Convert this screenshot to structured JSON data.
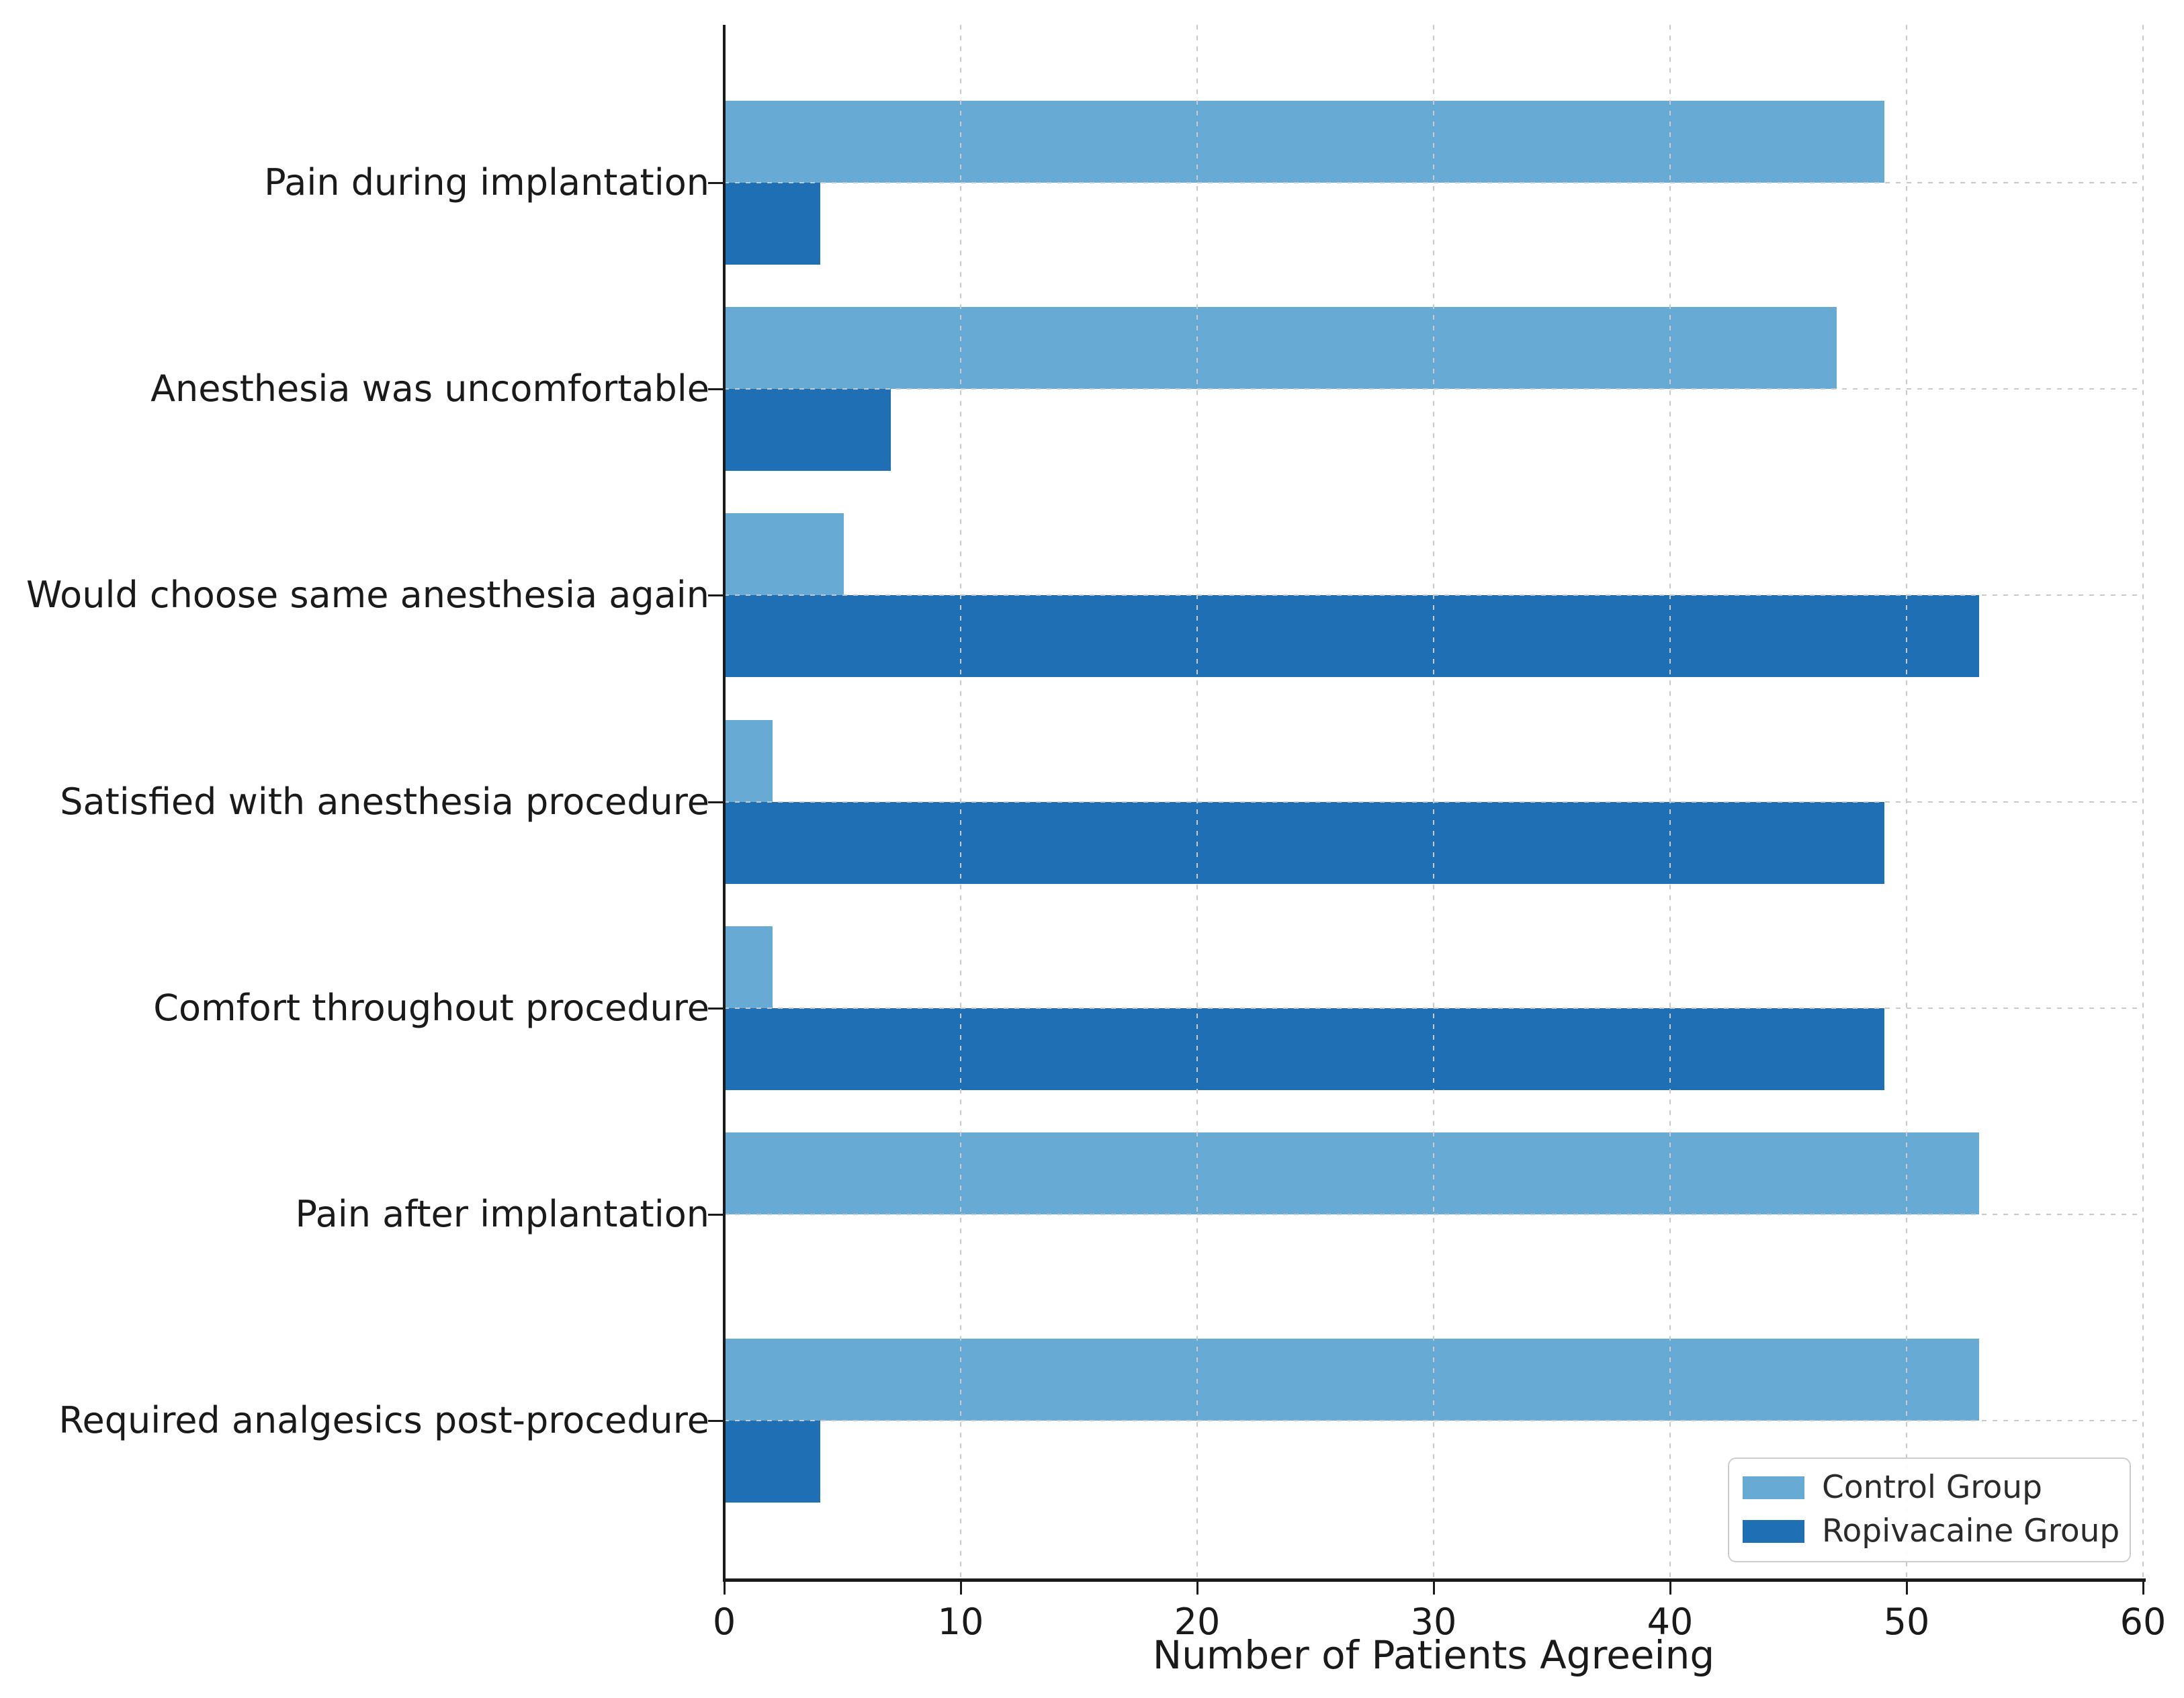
{
  "chart_data": {
    "type": "bar",
    "orientation": "horizontal",
    "title": "",
    "xlabel": "Number of Patients Agreeing",
    "ylabel": "",
    "xlim": [
      0,
      60
    ],
    "xticks": [
      0,
      10,
      20,
      30,
      40,
      50,
      60
    ],
    "grid": "dashed gridlines on both axes, drawn over bars",
    "legend_position": "lower right",
    "categories": [
      "Pain during implantation",
      "Anesthesia was uncomfortable",
      "Would choose same anesthesia again",
      "Satisfied with anesthesia procedure",
      "Comfort throughout procedure",
      "Pain after implantation",
      "Required analgesics post-procedure"
    ],
    "series": [
      {
        "name": "Control Group",
        "color": "#67abd5",
        "values": [
          49,
          47,
          5,
          2,
          2,
          53,
          53
        ]
      },
      {
        "name": "Ropivacaine Group",
        "color": "#1f6fb5",
        "values": [
          4,
          7,
          53,
          49,
          49,
          0,
          4
        ]
      }
    ],
    "colors": {
      "background": "#ffffff",
      "grid": "#c9c9c9",
      "spine": "#1a1a1a",
      "text": "#1a1a1a"
    }
  }
}
